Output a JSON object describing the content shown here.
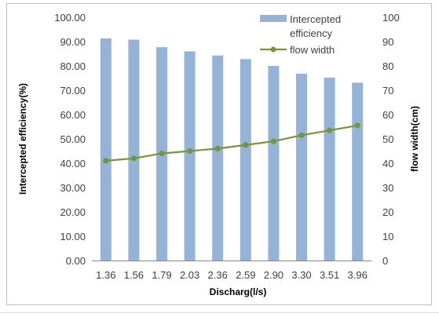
{
  "chart_data": {
    "type": "bar",
    "categories": [
      "1.36",
      "1.56",
      "1.79",
      "2.03",
      "2.36",
      "2.59",
      "2.90",
      "3.30",
      "3.51",
      "3.96"
    ],
    "xlabel": "Discharg(l/s)",
    "ylabel": "Intercepted efficiency(%)",
    "y2label": "flow width(cm)",
    "ylim": [
      0,
      100
    ],
    "y2lim": [
      0,
      100
    ],
    "y_ticks": [
      "0.00",
      "10.00",
      "20.00",
      "30.00",
      "40.00",
      "50.00",
      "60.00",
      "70.00",
      "80.00",
      "90.00",
      "100.00"
    ],
    "y2_ticks": [
      "0",
      "10",
      "20",
      "30",
      "40",
      "50",
      "60",
      "70",
      "80",
      "90",
      "100"
    ],
    "grid": false,
    "legend_position": "top-right",
    "series": [
      {
        "name": "Intercepted efficiency",
        "type": "bar",
        "axis": "left",
        "color": "#95b3d7",
        "values": [
          91.3,
          90.8,
          87.7,
          86.0,
          84.3,
          82.8,
          80.0,
          76.8,
          75.2,
          73.1
        ]
      },
      {
        "name": "flow width",
        "type": "line",
        "axis": "right",
        "color": "#77933c",
        "values": [
          41.0,
          42.0,
          44.0,
          45.0,
          46.0,
          47.5,
          49.0,
          51.5,
          53.5,
          55.5
        ]
      }
    ]
  }
}
